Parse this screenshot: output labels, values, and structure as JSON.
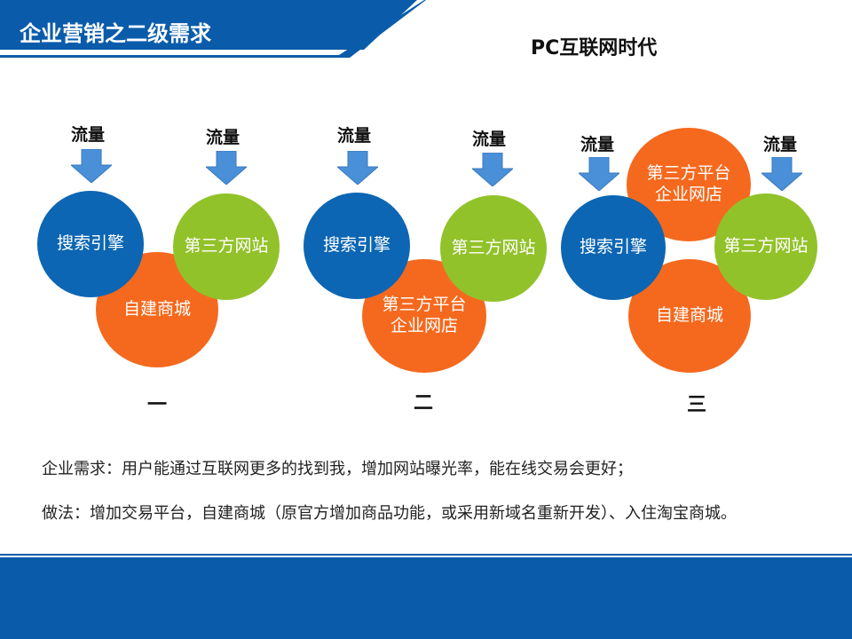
{
  "slide": {
    "title": "企业营销之二级需求",
    "subtitle": "PC互联网时代"
  },
  "labels": {
    "flow": "流量",
    "search": "搜索引擎",
    "third_site": "第三方网站",
    "own_mall": "自建商城",
    "platform_line1": "第三方平台",
    "platform_line2": "企业网店"
  },
  "diagrams": [
    {
      "numeral": "一"
    },
    {
      "numeral": "二"
    },
    {
      "numeral": "三"
    }
  ],
  "text": {
    "need": "企业需求：用户能通过互联网更多的找到我，增加网站曝光率，能在线交易会更好；",
    "method": "做法：增加交易平台，自建商城（原官方增加商品功能，或采用新域名重新开发）、入住淘宝商城。"
  },
  "colors": {
    "blue": "#0c66b3",
    "green": "#92c22a",
    "orange": "#f5691e",
    "arrow": "#4a90d9",
    "header": "#0a5cab"
  }
}
